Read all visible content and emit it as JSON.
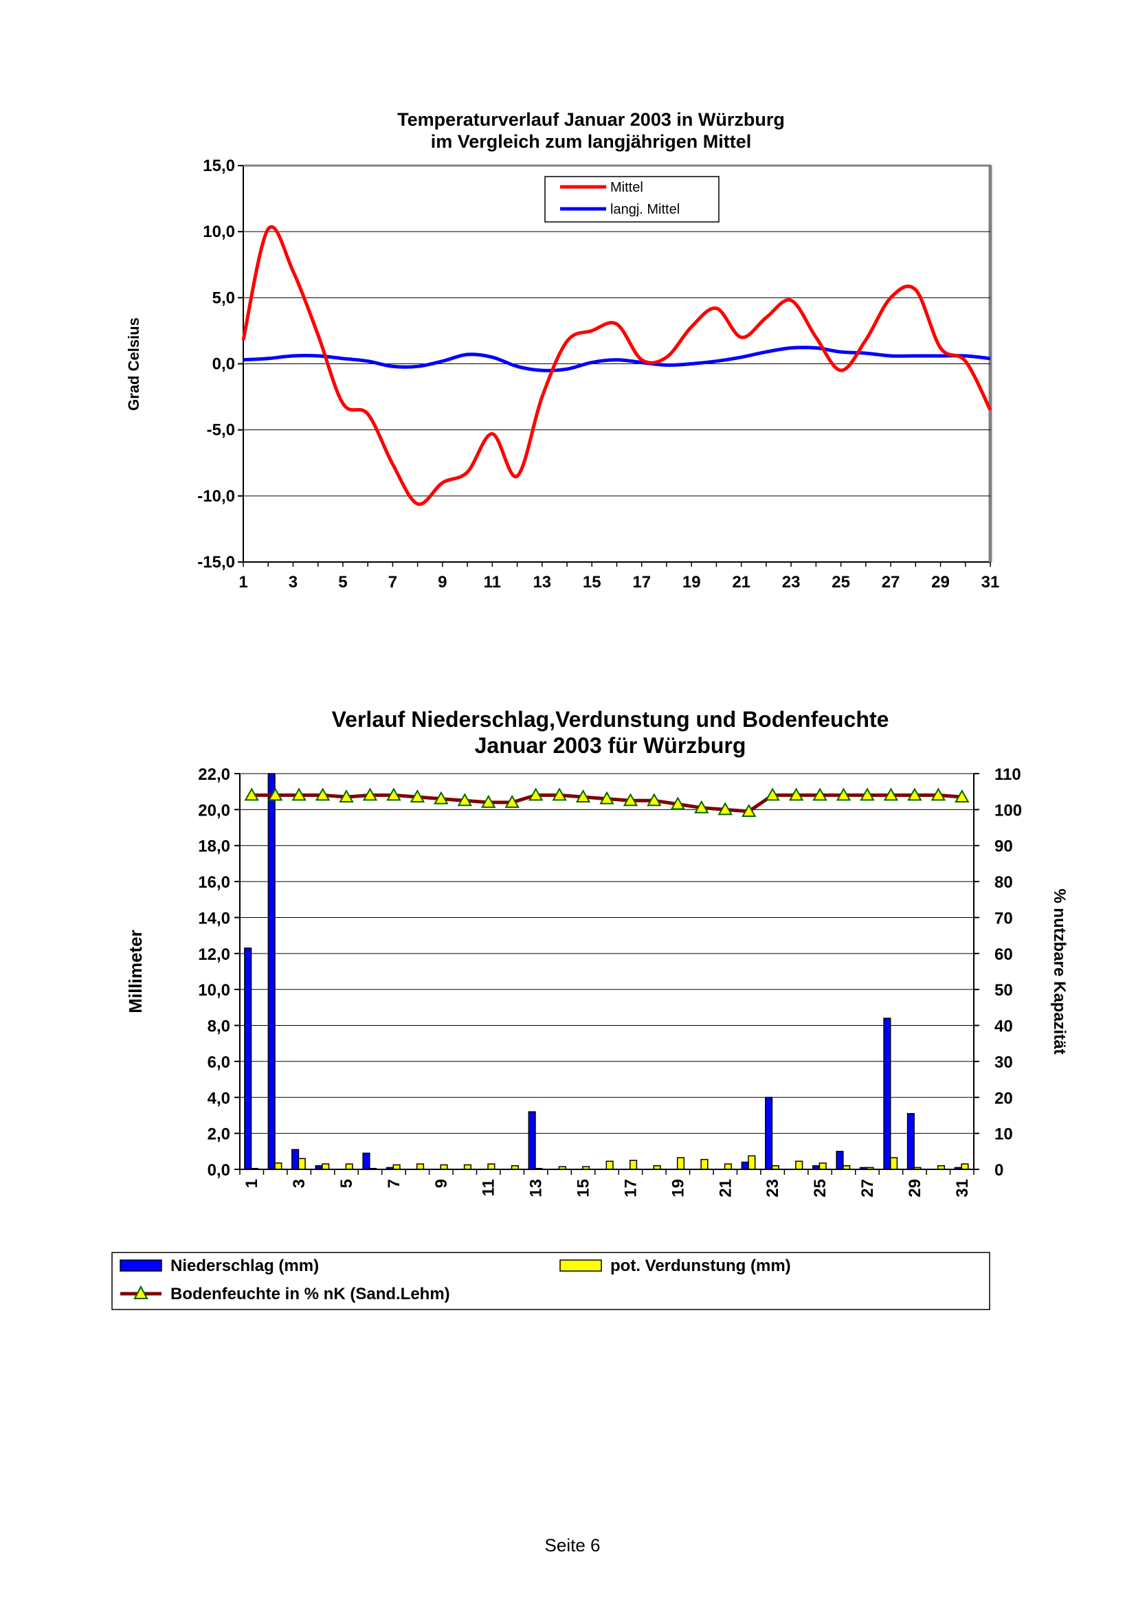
{
  "chart_data": [
    {
      "type": "line",
      "title": "Temperaturverlauf Januar 2003 in Würzburg",
      "subtitle": "im Vergleich zum langjährigen Mittel",
      "xlabel": "",
      "ylabel": "Grad Celsius",
      "ylim": [
        -15,
        15
      ],
      "yticks": [
        "15,0",
        "10,0",
        "5,0",
        "0,0",
        "-5,0",
        "-10,0",
        "-15,0"
      ],
      "x": [
        1,
        2,
        3,
        4,
        5,
        6,
        7,
        8,
        9,
        10,
        11,
        12,
        13,
        14,
        15,
        16,
        17,
        18,
        19,
        20,
        21,
        22,
        23,
        24,
        25,
        26,
        27,
        28,
        29,
        30,
        31
      ],
      "xtick_labels": [
        "1",
        "3",
        "5",
        "7",
        "9",
        "11",
        "13",
        "15",
        "17",
        "19",
        "21",
        "23",
        "25",
        "27",
        "29",
        "31"
      ],
      "legend_position": "top-center",
      "grid": true,
      "series": [
        {
          "name": "Mittel",
          "color": "#ff0000",
          "values": [
            1.8,
            10.2,
            7.0,
            2.2,
            -3.0,
            -3.8,
            -7.6,
            -10.6,
            -9.0,
            -8.2,
            -5.3,
            -8.5,
            -2.5,
            1.7,
            2.5,
            3.0,
            0.3,
            0.5,
            2.8,
            4.2,
            2.0,
            3.5,
            4.8,
            2.0,
            -0.5,
            1.8,
            5.0,
            5.6,
            1.2,
            0.2,
            -3.5
          ]
        },
        {
          "name": "langj. Mittel",
          "color": "#0000ff",
          "values": [
            0.3,
            0.4,
            0.6,
            0.6,
            0.4,
            0.2,
            -0.2,
            -0.2,
            0.2,
            0.7,
            0.5,
            -0.2,
            -0.5,
            -0.4,
            0.1,
            0.3,
            0.1,
            -0.1,
            0.0,
            0.2,
            0.5,
            0.9,
            1.2,
            1.2,
            0.9,
            0.8,
            0.6,
            0.6,
            0.6,
            0.6,
            0.4
          ]
        }
      ]
    },
    {
      "type": "bar",
      "title": "Verlauf Niederschlag,Verdunstung und Bodenfeuchte",
      "subtitle": "Januar 2003 für Würzburg",
      "xlabel": "",
      "ylabel": "Millimeter",
      "ylabel_right": "% nutzbare Kapazität",
      "ylim": [
        0,
        22
      ],
      "ylim_right": [
        0,
        110
      ],
      "yticks": [
        "22,0",
        "20,0",
        "18,0",
        "16,0",
        "14,0",
        "12,0",
        "10,0",
        "8,0",
        "6,0",
        "4,0",
        "2,0",
        "0,0"
      ],
      "yticks_right": [
        "110",
        "100",
        "90",
        "80",
        "70",
        "60",
        "50",
        "40",
        "30",
        "20",
        "10",
        "0"
      ],
      "categories": [
        1,
        2,
        3,
        4,
        5,
        6,
        7,
        8,
        9,
        10,
        11,
        12,
        13,
        14,
        15,
        16,
        17,
        18,
        19,
        20,
        21,
        22,
        23,
        24,
        25,
        26,
        27,
        28,
        29,
        30,
        31
      ],
      "xtick_labels": [
        "1",
        "3",
        "5",
        "7",
        "9",
        "11",
        "13",
        "15",
        "17",
        "19",
        "21",
        "23",
        "25",
        "27",
        "29",
        "31"
      ],
      "legend_position": "bottom",
      "grid": true,
      "series": [
        {
          "name": "Niederschlag (mm)",
          "color": "#0000ff",
          "kind": "bar",
          "values": [
            12.3,
            22.1,
            1.1,
            0.2,
            0.0,
            0.9,
            0.1,
            0.0,
            0.0,
            0.0,
            0.0,
            0.0,
            3.2,
            0.0,
            0.0,
            0.0,
            0.0,
            0.0,
            0.0,
            0.0,
            0.0,
            0.4,
            4.0,
            0.0,
            0.2,
            1.0,
            0.1,
            8.4,
            3.1,
            0.0,
            0.1
          ]
        },
        {
          "name": "pot. Verdunstung (mm)",
          "color": "#ffff00",
          "kind": "bar",
          "values": [
            0.05,
            0.35,
            0.6,
            0.3,
            0.3,
            0.05,
            0.25,
            0.3,
            0.25,
            0.25,
            0.3,
            0.2,
            0.05,
            0.15,
            0.15,
            0.45,
            0.5,
            0.2,
            0.65,
            0.55,
            0.3,
            0.75,
            0.2,
            0.45,
            0.35,
            0.2,
            0.1,
            0.65,
            0.1,
            0.2,
            0.3
          ]
        },
        {
          "name": "Bodenfeuchte in % nK (Sand.Lehm)",
          "color": "#800000",
          "marker_color": "#ffff00",
          "kind": "line",
          "axis": "right",
          "values": [
            104,
            104,
            104,
            104,
            103.5,
            104,
            104,
            103.5,
            103,
            102.5,
            102,
            102,
            104,
            104,
            103.5,
            103,
            102.5,
            102.5,
            101.5,
            100.5,
            100,
            99.5,
            104,
            104,
            104,
            104,
            104,
            104,
            104,
            104,
            103.5
          ]
        }
      ]
    }
  ],
  "footer": {
    "page_label": "Seite 6"
  }
}
